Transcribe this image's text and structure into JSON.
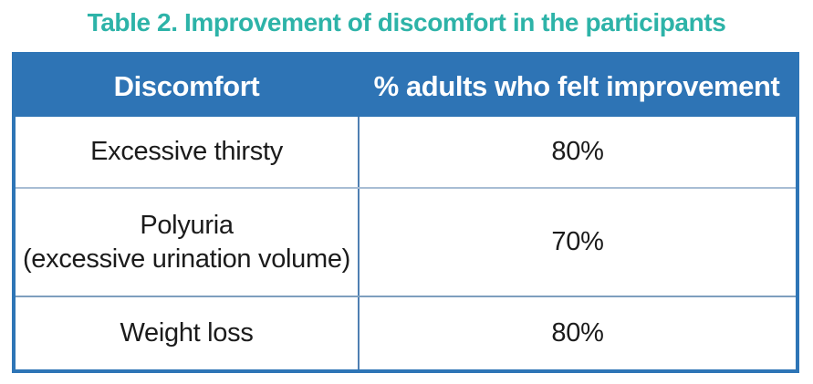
{
  "title": {
    "text": "Table 2. Improvement of discomfort in the participants"
  },
  "colors": {
    "title_text": "#2db3a8",
    "header_background": "#2e74b5",
    "header_text": "#ffffff",
    "outer_border": "#2e75b6",
    "row_divider_light": "#a8bdd4",
    "row_divider_dark": "#7e9fbe",
    "column_divider": "#4f7fb2",
    "body_text": "#1b1b1b"
  },
  "table": {
    "header": {
      "columns": [
        "Discomfort",
        "% adults who felt improvement"
      ]
    },
    "rows": [
      {
        "discomfort": [
          "Excessive thirsty"
        ],
        "improvement": "80%"
      },
      {
        "discomfort": [
          "Polyuria",
          "(excessive urination volume)"
        ],
        "improvement": "70%"
      },
      {
        "discomfort": [
          "Weight loss"
        ],
        "improvement": "80%"
      }
    ]
  }
}
